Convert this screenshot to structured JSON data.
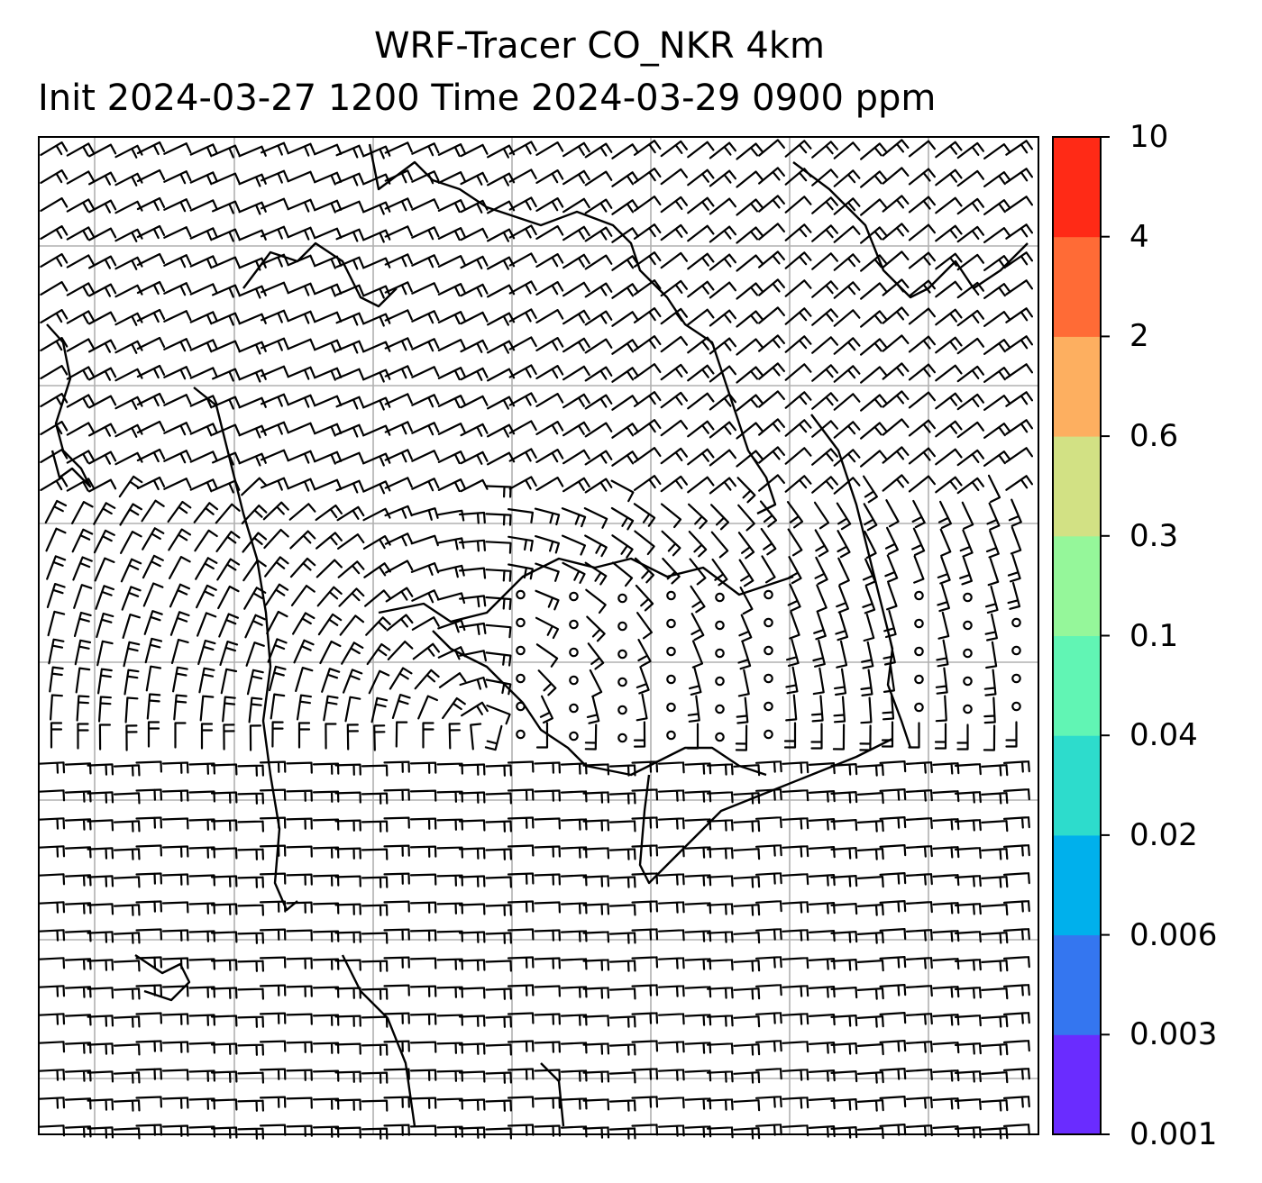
{
  "title": {
    "line1": "WRF-Tracer CO_NKR 4km",
    "line2": "Init 2024-03-27 1200 Time 2024-03-29 0900 ppm"
  },
  "colorbar": {
    "ticks": [
      "0.001",
      "0.003",
      "0.006",
      "0.02",
      "0.04",
      "0.1",
      "0.3",
      "0.6",
      "2",
      "4",
      "10"
    ],
    "colors": [
      "#6a2cff",
      "#3476f0",
      "#00b0ec",
      "#2ddccc",
      "#61f5b4",
      "#95f79a",
      "#d2e184",
      "#fdaf60",
      "#ff6b36",
      "#ff2a16"
    ]
  },
  "map": {
    "background": "#ffffff",
    "gridline_color": "#b0b0b0",
    "coastline_color": "#000000",
    "symbol": "wind barbs"
  }
}
